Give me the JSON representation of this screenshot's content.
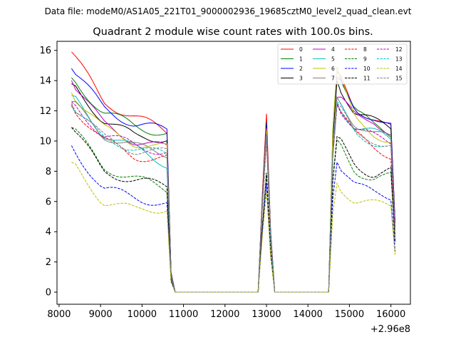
{
  "suptitle": "Data file: modeM0/AS1A05_221T01_9000002936_19685cztM0_level2_quad_clean.evt",
  "chart_data": {
    "type": "line",
    "title": "Quadrant 2 module wise count rates with 100.0s bins.",
    "xlabel": "",
    "ylabel": "",
    "x_offset_label": "+2.96e8",
    "xlim": [
      7950,
      16470
    ],
    "ylim": [
      -0.8,
      16.6
    ],
    "xticks": [
      8000,
      9000,
      10000,
      11000,
      12000,
      13000,
      14000,
      15000,
      16000
    ],
    "yticks": [
      0,
      2,
      4,
      6,
      8,
      10,
      12,
      14,
      16
    ],
    "grid": false,
    "legend": {
      "position": "top-right",
      "columns": 4
    },
    "series": [
      {
        "name": "0",
        "color": "#ff0000",
        "dash": "solid",
        "s1": [
          15.9,
          12.6,
          11.6,
          10.6
        ],
        "peak": 11.8,
        "s3": [
          14.6,
          12.2,
          11.6,
          10.8
        ]
      },
      {
        "name": "1",
        "color": "#008000",
        "dash": "solid",
        "s1": [
          14.2,
          11.9,
          11.0,
          10.5
        ],
        "peak": 11.3,
        "s3": [
          14.9,
          12.0,
          11.0,
          10.5
        ]
      },
      {
        "name": "2",
        "color": "#0000ff",
        "dash": "solid",
        "s1": [
          14.8,
          12.2,
          11.1,
          10.7
        ],
        "peak": 11.2,
        "s3": [
          14.2,
          12.0,
          11.7,
          11.0
        ]
      },
      {
        "name": "3",
        "color": "#000000",
        "dash": "solid",
        "s1": [
          13.8,
          11.4,
          10.3,
          10.2
        ],
        "peak": 11.0,
        "s3": [
          14.0,
          11.8,
          11.3,
          10.9
        ]
      },
      {
        "name": "4",
        "color": "#bf00bf",
        "dash": "solid",
        "s1": [
          14.0,
          11.1,
          10.0,
          9.5
        ],
        "peak": 10.9,
        "s3": [
          12.9,
          11.7,
          11.5,
          10.4
        ]
      },
      {
        "name": "5",
        "color": "#00bfbf",
        "dash": "solid",
        "s1": [
          13.0,
          10.5,
          9.5,
          8.5
        ],
        "peak": 10.6,
        "s3": [
          12.5,
          11.0,
          10.6,
          10.0
        ]
      },
      {
        "name": "6",
        "color": "#bfbf00",
        "dash": "solid",
        "s1": [
          13.2,
          10.8,
          9.9,
          9.5
        ],
        "peak": 10.8,
        "s3": [
          14.8,
          11.3,
          10.5,
          10.1
        ]
      },
      {
        "name": "7",
        "color": "#808080",
        "dash": "solid",
        "s1": [
          12.6,
          10.4,
          9.6,
          9.2
        ],
        "peak": 10.5,
        "s3": [
          12.9,
          11.2,
          10.5,
          10.1
        ]
      },
      {
        "name": "8",
        "color": "#ff0000",
        "dash": "dashed",
        "s1": [
          12.4,
          10.0,
          9.0,
          8.8
        ],
        "peak": 10.0,
        "s3": [
          12.4,
          10.4,
          9.6,
          9.1
        ]
      },
      {
        "name": "9",
        "color": "#008000",
        "dash": "dashed",
        "s1": [
          10.9,
          8.3,
          7.5,
          6.8
        ],
        "peak": 7.8,
        "s3": [
          10.1,
          8.1,
          7.5,
          7.6
        ]
      },
      {
        "name": "10",
        "color": "#0000ff",
        "dash": "dashed",
        "s1": [
          9.7,
          6.8,
          6.3,
          5.8
        ],
        "peak": 7.2,
        "s3": [
          8.6,
          7.0,
          6.6,
          6.4
        ]
      },
      {
        "name": "11",
        "color": "#000000",
        "dash": "dashed",
        "s1": [
          10.9,
          8.0,
          7.4,
          7.0
        ],
        "peak": 7.9,
        "s3": [
          10.3,
          8.5,
          7.8,
          8.0
        ]
      },
      {
        "name": "12",
        "color": "#bf00bf",
        "dash": "dashed",
        "s1": [
          12.6,
          10.4,
          9.7,
          9.3
        ],
        "peak": 10.4,
        "s3": [
          12.5,
          10.7,
          10.3,
          10.0
        ]
      },
      {
        "name": "13",
        "color": "#00bfbf",
        "dash": "dashed",
        "s1": [
          12.3,
          10.1,
          9.6,
          9.0
        ],
        "peak": 10.3,
        "s3": [
          12.6,
          10.5,
          10.0,
          9.6
        ]
      },
      {
        "name": "14",
        "color": "#bfbf00",
        "dash": "dashed",
        "s1": [
          8.6,
          6.0,
          5.4,
          5.6
        ],
        "peak": 6.7,
        "s3": [
          7.2,
          6.0,
          5.8,
          5.7
        ]
      },
      {
        "name": "15",
        "color": "#808080",
        "dash": "dashed",
        "s1": [
          12.5,
          10.2,
          9.4,
          9.2
        ],
        "peak": 10.2,
        "s3": [
          12.5,
          10.4,
          10.1,
          9.8
        ]
      }
    ]
  }
}
